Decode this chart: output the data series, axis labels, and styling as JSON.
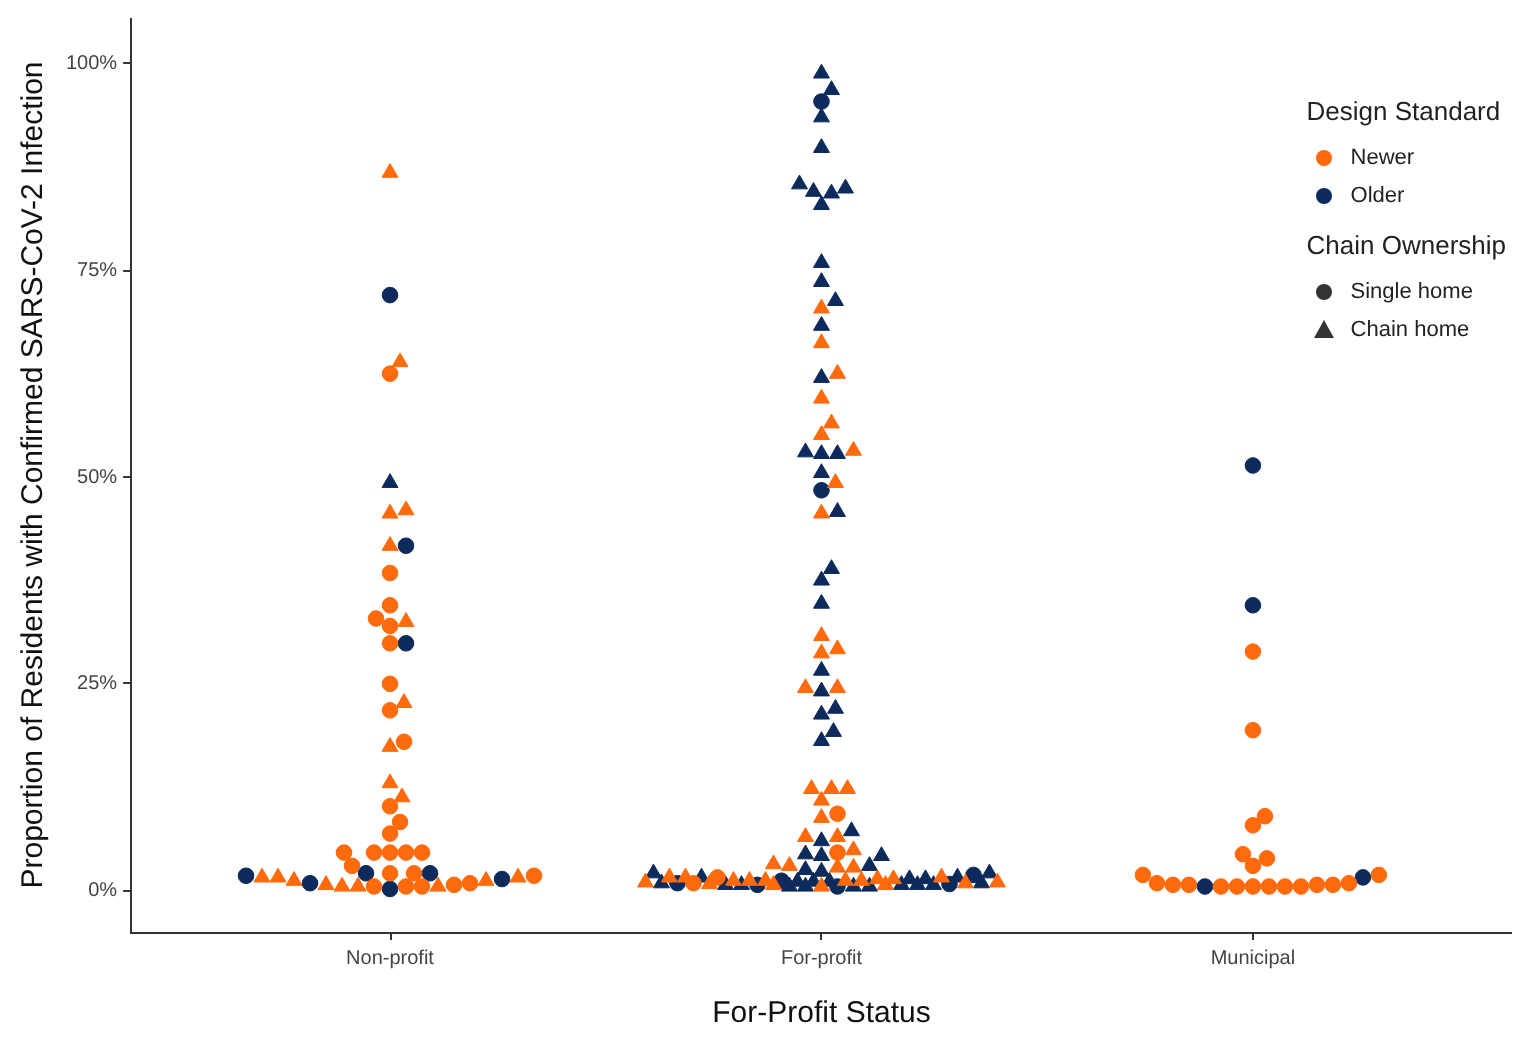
{
  "chart_data": {
    "type": "scatter",
    "xlabel": "For-Profit Status",
    "ylabel": "Proportion of Residents with Confirmed SARS-CoV-2 Infection",
    "legend_title": "Design Standard",
    "legend": "top right",
    "annotations": [
      "Chain Ownership",
      "Single home",
      "Chain home"
    ],
    "categories": [
      "Non-profit",
      "For-profit",
      "Municipal"
    ],
    "ylim": [
      -5,
      105.5
    ],
    "yticks": [
      {
        "value": 0,
        "label": "0%"
      },
      {
        "value": 25,
        "label": "25%"
      },
      {
        "value": 50,
        "label": "50%"
      },
      {
        "value": 75,
        "label": "75%"
      },
      {
        "value": 100,
        "label": "100%"
      }
    ],
    "series": [
      {
        "name": "Newer",
        "color": "#ff6a0d",
        "marker": "circle",
        "x": [
          "Non-profit",
          "Non-profit",
          "Non-profit",
          "Non-profit",
          "Non-profit",
          "Non-profit",
          "Non-profit",
          "Non-profit",
          "Non-profit",
          "Non-profit",
          "Non-profit",
          "Non-profit",
          "Non-profit",
          "Non-profit",
          "Non-profit",
          "Non-profit",
          "Non-profit",
          "Non-profit",
          "Non-profit",
          "Non-profit",
          "Non-profit",
          "Non-profit",
          "Non-profit",
          "Non-profit",
          "Non-profit",
          "Non-profit",
          "For-profit",
          "For-profit",
          "For-profit",
          "For-profit",
          "Municipal",
          "Municipal",
          "Municipal",
          "Municipal",
          "Municipal",
          "Municipal",
          "Municipal",
          "Municipal",
          "Municipal",
          "Municipal",
          "Municipal",
          "Municipal",
          "Municipal",
          "Municipal",
          "Municipal",
          "Municipal",
          "Municipal",
          "Municipal",
          "Municipal",
          "Municipal",
          "Municipal"
        ],
        "values": [
          62.5,
          38.4,
          34.5,
          32.9,
          32.0,
          29.9,
          25.0,
          21.8,
          18.0,
          10.2,
          8.3,
          6.9,
          4.6,
          4.6,
          4.6,
          4.6,
          4.6,
          3.0,
          2.1,
          1.8,
          0.5,
          0.7,
          2.1,
          0.9,
          0.5,
          0.5,
          9.3,
          4.6,
          1.6,
          0.9,
          28.9,
          19.4,
          9.0,
          7.9,
          4.4,
          3.9,
          3.0,
          1.9,
          1.9,
          0.7,
          0.5,
          0.5,
          0.7,
          0.7,
          0.9,
          0.9,
          0.7,
          0.5,
          0.5,
          0.5,
          0.5
        ]
      },
      {
        "color": "#ff6a0d",
        "marker": "triangle",
        "x": [
          "Non-profit",
          "Non-profit",
          "Non-profit",
          "Non-profit",
          "Non-profit",
          "Non-profit",
          "Non-profit",
          "Non-profit",
          "Non-profit",
          "Non-profit",
          "Non-profit",
          "Non-profit",
          "Non-profit",
          "Non-profit",
          "Non-profit",
          "Non-profit",
          "Non-profit",
          "Non-profit",
          "Non-profit",
          "For-profit",
          "For-profit",
          "For-profit",
          "For-profit",
          "For-profit",
          "For-profit",
          "For-profit",
          "For-profit",
          "For-profit",
          "For-profit",
          "For-profit",
          "For-profit",
          "For-profit",
          "For-profit",
          "For-profit",
          "For-profit",
          "For-profit",
          "For-profit",
          "For-profit",
          "For-profit",
          "For-profit",
          "For-profit",
          "For-profit",
          "For-profit",
          "For-profit",
          "For-profit",
          "For-profit",
          "For-profit",
          "For-profit",
          "For-profit",
          "For-profit",
          "For-profit",
          "For-profit",
          "For-profit",
          "For-profit",
          "For-profit",
          "For-profit",
          "For-profit",
          "For-profit",
          "For-profit",
          "For-profit",
          "For-profit",
          "For-profit"
        ],
        "values": [
          86.8,
          63.9,
          46.0,
          45.6,
          41.7,
          32.5,
          22.7,
          17.4,
          13.0,
          11.3,
          0.5,
          0.7,
          1.2,
          0.5,
          1.6,
          0.5,
          1.6,
          1.6,
          1.2,
          70.4,
          66.2,
          62.5,
          59.5,
          56.5,
          55.1,
          53.2,
          49.3,
          45.6,
          30.8,
          29.2,
          28.7,
          24.5,
          24.5,
          12.3,
          12.3,
          12.3,
          10.9,
          8.8,
          6.5,
          6.5,
          4.9,
          2.8,
          3.0,
          3.2,
          2.8,
          1.6,
          1.4,
          0.5,
          0.7,
          0.7,
          0.8,
          0.9,
          1.0,
          1.0,
          1.2,
          1.2,
          1.6,
          1.6,
          1.4,
          1.2,
          1.2,
          1.2
        ]
      },
      {
        "name": "Older",
        "color": "#0c2a5b",
        "marker": "circle",
        "x": [
          "Non-profit",
          "Non-profit",
          "Non-profit",
          "Non-profit",
          "Non-profit",
          "Non-profit",
          "Non-profit",
          "Non-profit",
          "Non-profit",
          "For-profit",
          "For-profit",
          "For-profit",
          "For-profit",
          "For-profit",
          "For-profit",
          "For-profit",
          "For-profit",
          "Municipal",
          "Municipal",
          "Municipal",
          "Municipal"
        ],
        "values": [
          72.0,
          41.7,
          29.9,
          0.9,
          1.4,
          2.1,
          2.1,
          1.8,
          0.2,
          95.4,
          48.4,
          1.9,
          0.8,
          1.2,
          0.9,
          0.7,
          0.5,
          51.4,
          34.5,
          1.6,
          0.5
        ]
      },
      {
        "color": "#0c2a5b",
        "marker": "triangle",
        "x": [
          "Non-profit",
          "For-profit",
          "For-profit",
          "For-profit",
          "For-profit",
          "For-profit",
          "For-profit",
          "For-profit",
          "For-profit",
          "For-profit",
          "For-profit",
          "For-profit",
          "For-profit",
          "For-profit",
          "For-profit",
          "For-profit",
          "For-profit",
          "For-profit",
          "For-profit",
          "For-profit",
          "For-profit",
          "For-profit",
          "For-profit",
          "For-profit",
          "For-profit",
          "For-profit",
          "For-profit",
          "For-profit",
          "For-profit",
          "For-profit",
          "For-profit",
          "For-profit",
          "For-profit",
          "For-profit",
          "For-profit",
          "For-profit",
          "For-profit",
          "For-profit",
          "For-profit",
          "For-profit",
          "For-profit",
          "For-profit",
          "For-profit",
          "For-profit",
          "For-profit",
          "For-profit",
          "For-profit",
          "For-profit",
          "For-profit",
          "For-profit",
          "For-profit",
          "For-profit",
          "For-profit",
          "For-profit",
          "For-profit",
          "For-profit",
          "For-profit"
        ],
        "values": [
          49.3,
          98.8,
          96.8,
          93.5,
          89.8,
          84.3,
          84.5,
          85.4,
          84.9,
          82.9,
          75.9,
          73.6,
          71.3,
          68.3,
          62.0,
          52.8,
          52.8,
          53.0,
          50.5,
          45.8,
          38.9,
          37.5,
          34.7,
          26.6,
          24.1,
          22.0,
          21.3,
          19.2,
          18.1,
          7.2,
          6.0,
          4.2,
          4.4,
          4.2,
          2.3,
          3.0,
          1.4,
          2.1,
          2.1,
          0.5,
          0.5,
          0.5,
          0.7,
          0.5,
          2.5,
          1.6,
          1.6,
          1.4,
          0.7,
          0.7,
          0.7,
          0.9,
          0.9,
          1.1,
          1.1,
          1.1,
          0.7
        ]
      }
    ]
  }
}
